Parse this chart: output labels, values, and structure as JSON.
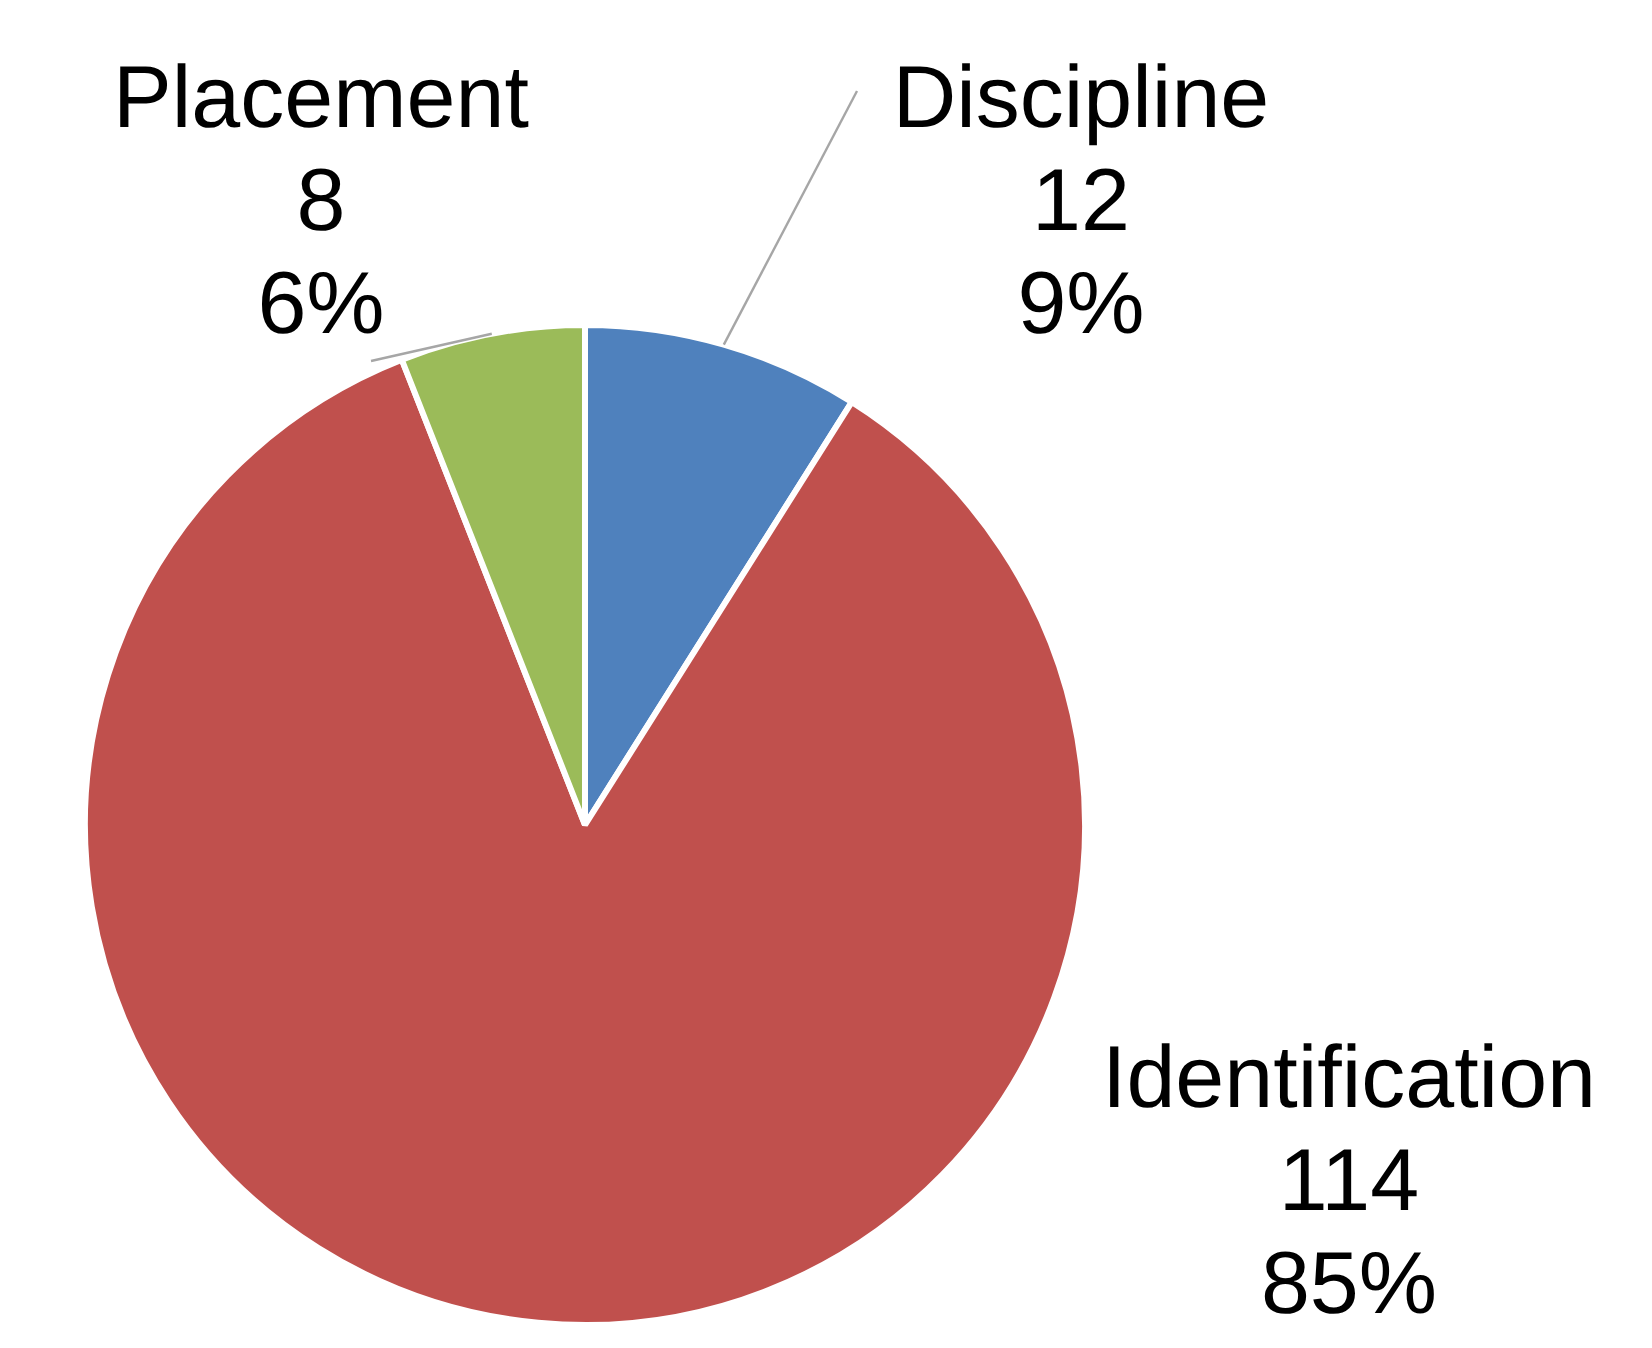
{
  "chart_data": {
    "type": "pie",
    "categories": [
      "Discipline",
      "Identification",
      "Placement"
    ],
    "values": [
      12,
      114,
      8
    ],
    "colors": [
      "#4f81bd",
      "#c0504d",
      "#9bbb59"
    ],
    "value_labels": [
      "12\n9%",
      "114\n85%",
      "8\n6%"
    ]
  }
}
